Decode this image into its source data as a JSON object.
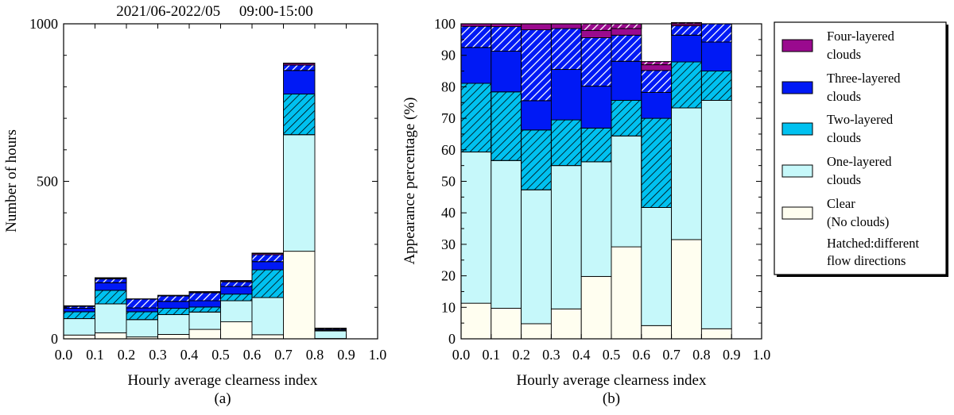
{
  "colors": {
    "clear": "#fffef0",
    "one": "#c6f8fa",
    "two": "#00c1f0",
    "three": "#0019f5",
    "four": "#9a0a8e",
    "stroke": "#000000"
  },
  "chart_data": [
    {
      "type": "bar",
      "stacked": true,
      "title": "2021/06-2022/05     09:00-15:00",
      "xlabel": "Hourly average clearness index",
      "ylabel": "Number of hours",
      "caption": "(a)",
      "xlim": [
        0,
        1.0
      ],
      "ylim": [
        0,
        1000
      ],
      "xticks": [
        "0.0",
        "0.1",
        "0.2",
        "0.3",
        "0.4",
        "0.5",
        "0.6",
        "0.7",
        "0.8",
        "0.9",
        "1.0"
      ],
      "yticks": [
        "0",
        "500",
        "1000"
      ],
      "xtick_values": [
        0,
        0.1,
        0.2,
        0.3,
        0.4,
        0.5,
        0.6,
        0.7,
        0.8,
        0.9,
        1.0
      ],
      "ytick_values": [
        0,
        500,
        1000
      ],
      "bin_edges": [
        0,
        0.1,
        0.2,
        0.3,
        0.4,
        0.5,
        0.6,
        0.7,
        0.8,
        0.9
      ],
      "layers": [
        "clear",
        "one",
        "two",
        "two_hatched",
        "three",
        "three_hatched",
        "four",
        "four_hatched"
      ],
      "segments": [
        [
          12,
          52,
          0,
          22,
          11,
          6,
          2,
          0
        ],
        [
          19,
          92,
          0,
          43,
          24,
          12,
          2,
          2
        ],
        [
          6,
          55,
          0,
          25,
          12,
          28,
          1,
          0
        ],
        [
          14,
          63,
          0,
          20,
          22,
          17,
          1,
          1
        ],
        [
          30,
          55,
          0,
          16,
          20,
          25,
          3,
          1
        ],
        [
          54,
          67,
          0,
          21,
          24,
          15,
          3,
          1
        ],
        [
          13,
          118,
          0,
          88,
          26,
          22,
          4,
          1
        ],
        [
          278,
          370,
          0,
          129,
          75,
          17,
          5,
          1
        ],
        [
          1,
          24,
          0,
          3,
          3,
          3,
          0,
          0
        ]
      ]
    },
    {
      "type": "bar",
      "stacked": true,
      "xlabel": "Hourly average clearness index",
      "ylabel": "Appearance percentage (%)",
      "caption": "(b)",
      "xlim": [
        0,
        1.0
      ],
      "ylim": [
        0,
        100
      ],
      "xticks": [
        "0.0",
        "0.1",
        "0.2",
        "0.3",
        "0.4",
        "0.5",
        "0.6",
        "0.7",
        "0.8",
        "0.9",
        "1.0"
      ],
      "yticks": [
        "0",
        "10",
        "20",
        "30",
        "40",
        "50",
        "60",
        "70",
        "80",
        "90",
        "100"
      ],
      "xtick_values": [
        0,
        0.1,
        0.2,
        0.3,
        0.4,
        0.5,
        0.6,
        0.7,
        0.8,
        0.9,
        1.0
      ],
      "ytick_values": [
        0,
        10,
        20,
        30,
        40,
        50,
        60,
        70,
        80,
        90,
        100
      ],
      "bin_edges": [
        0,
        0.1,
        0.2,
        0.3,
        0.4,
        0.5,
        0.6,
        0.7,
        0.8,
        0.9
      ],
      "layers": [
        "clear",
        "one",
        "two",
        "two_hatched",
        "three",
        "three_hatched",
        "four",
        "four_hatched"
      ],
      "segments": [
        [
          11.3,
          48.0,
          0,
          21.8,
          11.4,
          6.7,
          0.8,
          0
        ],
        [
          9.7,
          46.9,
          0,
          21.8,
          12.9,
          7.8,
          0.9,
          0
        ],
        [
          4.8,
          42.5,
          0,
          19.0,
          9.3,
          22.5,
          1.9,
          0
        ],
        [
          9.5,
          45.5,
          0,
          14.5,
          16.0,
          13.0,
          1.5,
          0
        ],
        [
          19.8,
          36.4,
          0,
          10.7,
          13.3,
          15.4,
          2.3,
          2.1
        ],
        [
          29.2,
          35.2,
          0,
          11.3,
          12.4,
          8.3,
          2.1,
          1.5
        ],
        [
          4.2,
          37.5,
          0,
          28.3,
          8.2,
          7.0,
          1.8,
          1.0
        ],
        [
          31.5,
          41.8,
          0,
          14.6,
          8.5,
          3.0,
          0.6,
          0.4
        ],
        [
          3.2,
          72.5,
          0,
          9.3,
          9.2,
          5.8,
          0,
          0
        ]
      ]
    }
  ],
  "legend": {
    "placement": "right",
    "items": [
      {
        "line1": "Four-layered",
        "line2": "clouds",
        "layer": "four"
      },
      {
        "line1": "Three-layered",
        "line2": "clouds",
        "layer": "three"
      },
      {
        "line1": "Two-layered",
        "line2": "clouds",
        "layer": "two"
      },
      {
        "line1": "One-layered",
        "line2": "clouds",
        "layer": "one"
      },
      {
        "line1": "Clear",
        "line2": "(No clouds)",
        "layer": "clear"
      }
    ],
    "note_line1": "Hatched:different",
    "note_line2": "flow directions"
  }
}
